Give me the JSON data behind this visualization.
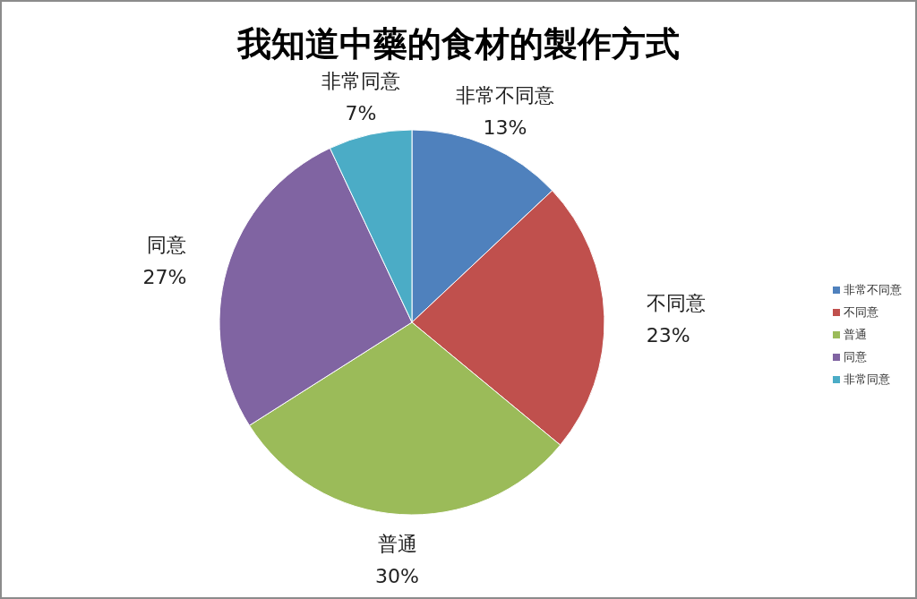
{
  "chart_data": {
    "type": "pie",
    "title": "我知道中藥的食材的製作方式",
    "categories": [
      "非常不同意",
      "不同意",
      "普通",
      "同意",
      "非常同意"
    ],
    "values": [
      13,
      23,
      30,
      27,
      7
    ],
    "colors": [
      "#4f81bd",
      "#c0504d",
      "#9bbb59",
      "#8064a2",
      "#4bacc6"
    ],
    "value_labels": [
      "13%",
      "23%",
      "30%",
      "27%",
      "7%"
    ],
    "legend": "right"
  }
}
